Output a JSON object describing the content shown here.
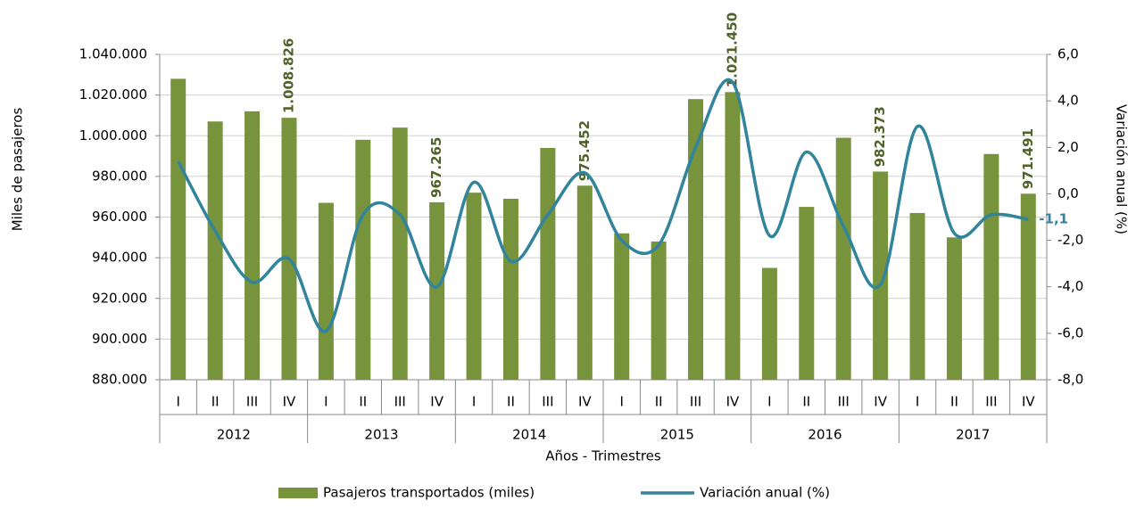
{
  "chart_data": {
    "type": "bar-line",
    "categories": [
      "I",
      "II",
      "III",
      "IV",
      "I",
      "II",
      "III",
      "IV",
      "I",
      "II",
      "III",
      "IV",
      "I",
      "II",
      "III",
      "IV",
      "I",
      "II",
      "III",
      "IV",
      "I",
      "II",
      "III",
      "IV"
    ],
    "groups": [
      "2012",
      "2013",
      "2014",
      "2015",
      "2016",
      "2017"
    ],
    "xlabel": "Años - Trimestres",
    "ylabel": "Miles de pasajeros",
    "y2label": "Variación anual (%)",
    "series": [
      {
        "name": "Pasajeros transportados (miles)",
        "type": "bar",
        "color": "#77933c",
        "values": [
          1028000,
          1007000,
          1012000,
          1008826,
          967000,
          998000,
          1004000,
          967265,
          972000,
          969000,
          994000,
          975452,
          952000,
          948000,
          1018000,
          1021450,
          935000,
          965000,
          999000,
          982373,
          962000,
          950000,
          991000,
          971491
        ],
        "value_labels": [
          null,
          null,
          null,
          "1.008.826",
          null,
          null,
          null,
          "967.265",
          null,
          null,
          null,
          "975.452",
          null,
          null,
          null,
          "1.021.450",
          null,
          null,
          null,
          "982.373",
          null,
          null,
          null,
          "971.491"
        ]
      },
      {
        "name": "Variación anual (%)",
        "type": "line",
        "axis": "y2",
        "color": "#31849b",
        "values": [
          1.4,
          -1.6,
          -3.8,
          -2.8,
          -5.9,
          -0.9,
          -0.9,
          -4.0,
          0.5,
          -2.9,
          -0.9,
          0.9,
          -2.0,
          -2.2,
          2.0,
          4.8,
          -1.8,
          1.8,
          -1.4,
          -3.9,
          2.9,
          -1.7,
          -0.9,
          -1.1
        ],
        "value_labels": [
          null,
          null,
          null,
          null,
          null,
          null,
          null,
          null,
          null,
          null,
          null,
          null,
          null,
          null,
          null,
          null,
          null,
          null,
          null,
          null,
          null,
          null,
          null,
          "-1,1"
        ]
      }
    ],
    "ylim": [
      880000,
      1040000
    ],
    "yticks": [
      {
        "value": 880000,
        "label": "880.000"
      },
      {
        "value": 900000,
        "label": "900.000"
      },
      {
        "value": 920000,
        "label": "920.000"
      },
      {
        "value": 940000,
        "label": "940.000"
      },
      {
        "value": 960000,
        "label": "960.000"
      },
      {
        "value": 980000,
        "label": "980.000"
      },
      {
        "value": 1000000,
        "label": "1.000.000"
      },
      {
        "value": 1020000,
        "label": "1.020.000"
      },
      {
        "value": 1040000,
        "label": "1.040.000"
      }
    ],
    "y2lim": [
      -8,
      6
    ],
    "y2ticks": [
      {
        "value": -8,
        "label": "-8,0"
      },
      {
        "value": -6,
        "label": "-6,0"
      },
      {
        "value": -4,
        "label": "-4,0"
      },
      {
        "value": -2,
        "label": "-2,0"
      },
      {
        "value": 0,
        "label": "0,0"
      },
      {
        "value": 2,
        "label": "2,0"
      },
      {
        "value": 4,
        "label": "4,0"
      },
      {
        "value": 6,
        "label": "6,0"
      }
    ],
    "grid": true,
    "legend": "bottom"
  }
}
